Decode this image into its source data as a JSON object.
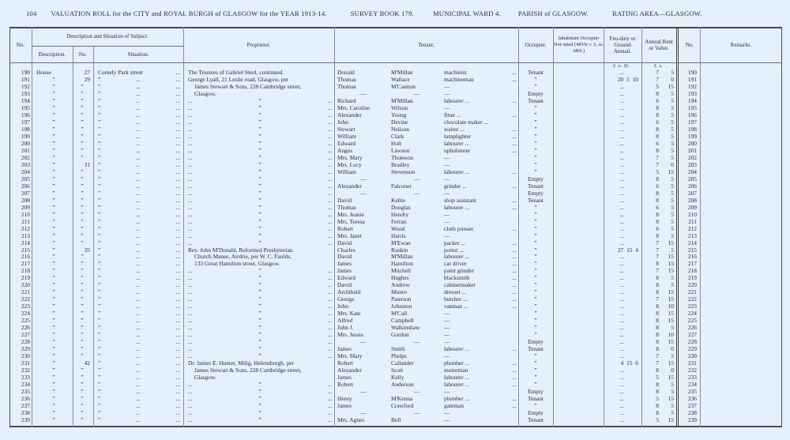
{
  "header": {
    "page_number": "104",
    "title": "VALUATION ROLL for the CITY and ROYAL BURGH of GLASGOW for the YEAR 1913-14.",
    "survey_book": "SURVEY BOOK 179.",
    "ward": "MUNICIPAL WARD 4.",
    "parish": "PARISH of GLASGOW.",
    "rating_area": "RATING AREA—GLASGOW."
  },
  "columns": {
    "no": "No.",
    "description_group": "Description and Situation of Subject.",
    "description": "Description.",
    "number": "No.",
    "situation": "Situation.",
    "proprietor": "Proprietor.",
    "tenant": "Tenant.",
    "occupier": "Occupier.",
    "inhabitant": "Inhabitant Occupier Not rated (48Vic c 3, ss. 3&9.)",
    "feu": "Feu-duty or Ground Annual.",
    "rent": "Annual Rent or Value.",
    "no_right": "No.",
    "remarks": "Remarks.",
    "feu_units": "£  s.  D.",
    "rent_units": "£  s."
  },
  "rows": [
    [
      "190",
      "House",
      "27",
      "Comely Park street|...",
      "The Trustees of Gabriel Steel, continued.",
      "Donald",
      "M'Millan",
      "machinist|...",
      "Tenant",
      "...",
      "7",
      "5"
    ],
    [
      "191",
      "”",
      "29",
      "”|...|...",
      "George Lyall, 21 Leslie road, Glasgow, per",
      "Thomas",
      "Wallace",
      "machineman|...",
      "”",
      "20  5  10",
      "7",
      "0"
    ],
    [
      "192",
      "”",
      "”",
      "”|...|...",
      "James Stewart & Sons, 228 Cambridge street,",
      "Thomas",
      "M'Cannon",
      "—",
      "”",
      "...",
      "5",
      "15"
    ],
    [
      "193",
      "”",
      "”",
      "”|...|...",
      "Glasgow.",
      "—",
      "—",
      "—",
      "Empty",
      "...",
      "8",
      "5"
    ],
    [
      "194",
      "”",
      "”",
      "”|...|...",
      "...|”|...",
      "Richard",
      "M'Millan",
      "labourer ...|...",
      "Tenant",
      "...",
      "6",
      "5"
    ],
    [
      "195",
      "”",
      "”",
      "”|...|...",
      "...|”|...",
      "Mrs. Caroline",
      "Wilson",
      "—",
      "”",
      "...",
      "8",
      "5"
    ],
    [
      "196",
      "”",
      "”",
      "”|...|...",
      "...|”|...",
      "Alexander",
      "Young",
      "fitter ...|...",
      "”",
      "...",
      "8",
      "5"
    ],
    [
      "197",
      "”",
      "”",
      "”|...|...",
      "...|”|...",
      "John",
      "Devine",
      "chocolate maker ...",
      "”",
      "...",
      "6",
      "5"
    ],
    [
      "198",
      "”",
      "”",
      "”|...|...",
      "...|”|...",
      "Stewart",
      "Neilson",
      "waiter ...|...",
      "”",
      "...",
      "8",
      "5"
    ],
    [
      "199",
      "”",
      "”",
      "”|...|...",
      "...|”|...",
      "William",
      "Clark",
      "lamplighter|...",
      "”",
      "...",
      "8",
      "5"
    ],
    [
      "200",
      "”",
      "”",
      "”|...|...",
      "...|”|...",
      "Edward",
      "Holt",
      "labourer ...|...",
      "”",
      "...",
      "6",
      "5"
    ],
    [
      "201",
      "”",
      "”",
      "”|...|...",
      "...|”|...",
      "Angus",
      "Lawson",
      "upholsterer|...",
      "”",
      "...",
      "8",
      "5"
    ],
    [
      "202",
      "”",
      "”",
      "”|...|...",
      "...|”|...",
      "Mrs. Mary",
      "Thomson",
      "—",
      "”",
      "...",
      "7",
      "5"
    ],
    [
      "203",
      "”",
      "31",
      "”|...|...",
      "...|”|...",
      "Mrs. Lucy",
      "Bradley",
      "—",
      "”",
      "...",
      "7",
      "0"
    ],
    [
      "204",
      "”",
      "”",
      "”|...|...",
      "...|”|...",
      "William",
      "Stevenson",
      "labourer ...|...",
      "”",
      "...",
      "5",
      "15"
    ],
    [
      "205",
      "”",
      "”",
      "”|...|...",
      "...|”|...",
      "—",
      "—",
      "—",
      "Empty",
      "...",
      "8",
      "5"
    ],
    [
      "206",
      "”",
      "”",
      "”|...|...",
      "...|”|...",
      "Alexander",
      "Falconer",
      "grinder ...|...",
      "Tenant",
      "...",
      "6",
      "5"
    ],
    [
      "207",
      "”",
      "”",
      "”|...|...",
      "...|”|...",
      "—",
      "—",
      "—",
      "Empty",
      "...",
      "8",
      "5"
    ],
    [
      "208",
      "”",
      "”",
      "”|...|...",
      "...|”|...",
      "David",
      "Keltie",
      "shop assistant|...",
      "Tenant",
      "...",
      "8",
      "5"
    ],
    [
      "209",
      "”",
      "”",
      "”|...|...",
      "...|”|...",
      "Thomas",
      "Douglas",
      "labourer ...|...",
      "”",
      "...",
      "6",
      "5"
    ],
    [
      "210",
      "”",
      "”",
      "”|...|...",
      "...|”|...",
      "Mrs. Jeanie",
      "Hendry",
      "—",
      "”",
      "...",
      "8",
      "5"
    ],
    [
      "211",
      "”",
      "”",
      "”|...|...",
      "...|”|...",
      "Mrs. Teresa",
      "Ferran",
      "—",
      "”",
      "...",
      "8",
      "5"
    ],
    [
      "212",
      "”",
      "”",
      "”|...|...",
      "...|”|...",
      "Robert",
      "Wood",
      "cloth presser|...",
      "”",
      "...",
      "6",
      "5"
    ],
    [
      "213",
      "”",
      "”",
      "”|...|...",
      "...|”|...",
      "Mrs. Janet",
      "Harris",
      "—",
      "”",
      "...",
      "8",
      "5"
    ],
    [
      "214",
      "”",
      "”",
      "”|...|...",
      "...|”|...",
      "David",
      "M'Ewan",
      "packer ...|...",
      "”",
      "...",
      "7",
      "15"
    ],
    [
      "215",
      "”",
      "35",
      "”|...|...",
      "Rev. John M'Donald, Reformed Presbyterian",
      "Charles",
      "Rankin",
      "porter ...|...",
      "”",
      "27  15  4",
      "7",
      "5"
    ],
    [
      "216",
      "”",
      "”",
      "”|...|...",
      "Church Manse, Airdrie, per W. C. Faulds,",
      "David",
      "M'Millan",
      "labourer ...|...",
      "”",
      "...",
      "7",
      "15"
    ],
    [
      "217",
      "”",
      "”",
      "”|...|...",
      "133 Great Hamilton street, Glasgow.",
      "James",
      "Hamilton",
      "car driver|...",
      "”",
      "...",
      "8",
      "15"
    ],
    [
      "218",
      "”",
      "”",
      "”|...|...",
      "...|”|...",
      "James",
      "Mitchell",
      "paint grinder|...",
      "”",
      "...",
      "7",
      "15"
    ],
    [
      "219",
      "”",
      "”",
      "”|...|...",
      "...|”|...",
      "Edward",
      "Hughes",
      "blacksmith|...",
      "”",
      "...",
      "8",
      "5"
    ],
    [
      "220",
      "”",
      "”",
      "”|...|...",
      "...|”|...",
      "David",
      "Andrew",
      "cabinetmaker|...",
      "”",
      "...",
      "8",
      "5"
    ],
    [
      "221",
      "”",
      "”",
      "”|...|...",
      "...|”|...",
      "Archibald",
      "Munro",
      "dresser ...|...",
      "”",
      "...",
      "8",
      "15"
    ],
    [
      "222",
      "”",
      "”",
      "”|...|...",
      "...|”|...",
      "George",
      "Paterson",
      "butcher ...|...",
      "”",
      "...",
      "7",
      "15"
    ],
    [
      "223",
      "”",
      "”",
      "”|...|...",
      "...|”|...",
      "John",
      "Johnston",
      "vanman ...|...",
      "”",
      "...",
      "8",
      "10"
    ],
    [
      "224",
      "”",
      "”",
      "”|...|...",
      "...|”|...",
      "Mrs. Kate",
      "M'Call",
      "—",
      "”",
      "...",
      "8",
      "15"
    ],
    [
      "225",
      "”",
      "”",
      "”|...|...",
      "...|”|...",
      "Alfred",
      "Campbell",
      "—",
      "”",
      "...",
      "8",
      "15"
    ],
    [
      "226",
      "”",
      "”",
      "”|...|...",
      "...|”|...",
      "John J.",
      "Walkinshaw",
      "—",
      "”",
      "...",
      "8",
      "5"
    ],
    [
      "227",
      "”",
      "”",
      "”|...|...",
      "...|”|...",
      "Mrs. Jessie",
      "Gordon",
      "—",
      "”",
      "...",
      "8",
      "10"
    ],
    [
      "228",
      "”",
      "”",
      "”|...|...",
      "...|”|...",
      "—",
      "—",
      "—",
      "Empty",
      "...",
      "8",
      "15"
    ],
    [
      "229",
      "”",
      "”",
      "”|...|...",
      "...|”|...",
      "James",
      "Smith",
      "labourer ...|...",
      "Tenant",
      "...",
      "8",
      "0"
    ],
    [
      "230",
      "”",
      "”",
      "”|...|...",
      "...|”|...",
      "Mrs. Mary",
      "Phelps",
      "—",
      "”",
      "...",
      "7",
      "5"
    ],
    [
      "231",
      "”",
      "42",
      "”|...|...",
      "Dr. James E. Hunter, Milig, Helensburgh, per",
      "Robert",
      "Callander",
      "plumber ...|...",
      "”",
      "4  15  6",
      "7",
      "15"
    ],
    [
      "232",
      "”",
      "”",
      "”|...|...",
      "James Stewart & Sons, 228 Cambridge street,",
      "Alexander",
      "Scott",
      "motorman|...",
      "”",
      "...",
      "8",
      "0"
    ],
    [
      "233",
      "”",
      "”",
      "”|...|...",
      "Glasgow.",
      "James",
      "Kelly",
      "labourer ...|...",
      "”",
      "...",
      "5",
      "15"
    ],
    [
      "234",
      "”",
      "”",
      "”|...|...",
      "...|”|...",
      "Robert",
      "Anderson",
      "labourer ...|...",
      "”",
      "...",
      "8",
      "5"
    ],
    [
      "235",
      "”",
      "”",
      "”|...|...",
      "...|”|...",
      "—",
      "—",
      "—",
      "Empty",
      "...",
      "8",
      "5"
    ],
    [
      "236",
      "”",
      "”",
      "”|...|...",
      "...|”|...",
      "Henry",
      "M'Kenna",
      "plumber ...|...",
      "Tenant",
      "...",
      "5",
      "15"
    ],
    [
      "237",
      "”",
      "”",
      "”|...|...",
      "...|”|...",
      "James",
      "Crawford",
      "gateman|...",
      "”",
      "...",
      "8",
      "5"
    ],
    [
      "238",
      "”",
      "”",
      "”|...|...",
      "...|”|...",
      "—",
      "—",
      "—",
      "Empty",
      "...",
      "8",
      "5"
    ],
    [
      "239",
      "”",
      "”",
      "”|...|...",
      "...|”|...",
      "Mrs. Agnes",
      "Bell",
      "—",
      "Tenant",
      "...",
      "5",
      "15"
    ]
  ]
}
